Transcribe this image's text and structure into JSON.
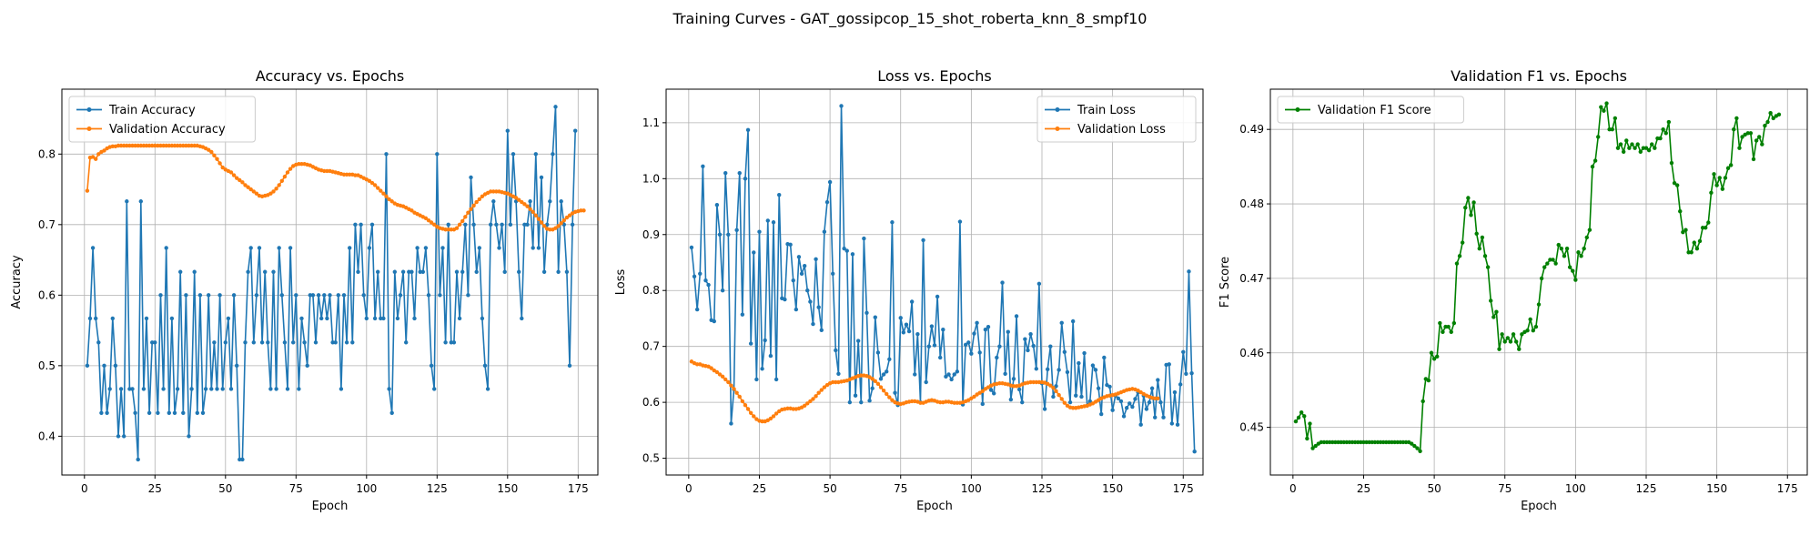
{
  "figure": {
    "suptitle": "Training Curves - GAT_gossipcop_15_shot_roberta_knn_8_smpf10"
  },
  "colors": {
    "blue": "#1f77b4",
    "orange": "#ff7f0e",
    "green": "#008000",
    "grid": "#b0b0b0"
  },
  "chart_data": [
    {
      "type": "line",
      "title": "Accuracy vs. Epochs",
      "xlabel": "Epoch",
      "ylabel": "Accuracy",
      "xlim": [
        -8,
        182
      ],
      "ylim": [
        0.345,
        0.892
      ],
      "xticks": [
        0,
        25,
        50,
        75,
        100,
        125,
        150,
        175
      ],
      "yticks": [
        0.4,
        0.5,
        0.6,
        0.7,
        0.8
      ],
      "legend": "top-left",
      "grid": true,
      "series": [
        {
          "name": "Train Accuracy",
          "color": "#1f77b4",
          "values": [
            0.5,
            0.567,
            0.667,
            0.567,
            0.533,
            0.433,
            0.5,
            0.433,
            0.467,
            0.567,
            0.5,
            0.4,
            0.467,
            0.4,
            0.733,
            0.467,
            0.467,
            0.433,
            0.367,
            0.733,
            0.467,
            0.567,
            0.433,
            0.533,
            0.533,
            0.433,
            0.6,
            0.467,
            0.667,
            0.433,
            0.567,
            0.433,
            0.467,
            0.633,
            0.433,
            0.6,
            0.4,
            0.467,
            0.633,
            0.433,
            0.6,
            0.433,
            0.467,
            0.6,
            0.467,
            0.533,
            0.467,
            0.6,
            0.467,
            0.533,
            0.567,
            0.467,
            0.6,
            0.5,
            0.367,
            0.367,
            0.533,
            0.633,
            0.667,
            0.533,
            0.6,
            0.667,
            0.533,
            0.633,
            0.533,
            0.467,
            0.633,
            0.467,
            0.667,
            0.6,
            0.533,
            0.467,
            0.667,
            0.533,
            0.6,
            0.467,
            0.567,
            0.533,
            0.5,
            0.6,
            0.6,
            0.533,
            0.6,
            0.567,
            0.6,
            0.567,
            0.6,
            0.533,
            0.533,
            0.6,
            0.467,
            0.6,
            0.533,
            0.667,
            0.533,
            0.7,
            0.633,
            0.7,
            0.6,
            0.567,
            0.667,
            0.7,
            0.567,
            0.633,
            0.567,
            0.567,
            0.8,
            0.467,
            0.433,
            0.633,
            0.567,
            0.6,
            0.633,
            0.533,
            0.633,
            0.633,
            0.567,
            0.667,
            0.633,
            0.633,
            0.667,
            0.6,
            0.5,
            0.467,
            0.8,
            0.6,
            0.667,
            0.533,
            0.7,
            0.533,
            0.533,
            0.633,
            0.567,
            0.633,
            0.7,
            0.6,
            0.767,
            0.7,
            0.633,
            0.667,
            0.567,
            0.5,
            0.467,
            0.7,
            0.733,
            0.7,
            0.667,
            0.7,
            0.633,
            0.833,
            0.7,
            0.8,
            0.733,
            0.633,
            0.567,
            0.7,
            0.7,
            0.733,
            0.667,
            0.8,
            0.667,
            0.767,
            0.633,
            0.7,
            0.733,
            0.8,
            0.867,
            0.633,
            0.733,
            0.7,
            0.633,
            0.5,
            0.7,
            0.833
          ]
        },
        {
          "name": "Validation Accuracy",
          "color": "#ff7f0e",
          "values": [
            0.748,
            0.795,
            0.796,
            0.793,
            0.8,
            0.803,
            0.805,
            0.808,
            0.81,
            0.811,
            0.811,
            0.812,
            0.812,
            0.812,
            0.812,
            0.812,
            0.812,
            0.812,
            0.812,
            0.812,
            0.812,
            0.812,
            0.812,
            0.812,
            0.812,
            0.812,
            0.812,
            0.812,
            0.812,
            0.812,
            0.812,
            0.812,
            0.812,
            0.812,
            0.812,
            0.812,
            0.812,
            0.812,
            0.812,
            0.812,
            0.811,
            0.81,
            0.808,
            0.806,
            0.803,
            0.798,
            0.793,
            0.787,
            0.781,
            0.778,
            0.776,
            0.774,
            0.77,
            0.766,
            0.763,
            0.76,
            0.756,
            0.753,
            0.75,
            0.747,
            0.744,
            0.741,
            0.74,
            0.741,
            0.742,
            0.744,
            0.747,
            0.751,
            0.756,
            0.762,
            0.768,
            0.774,
            0.779,
            0.783,
            0.785,
            0.786,
            0.786,
            0.786,
            0.785,
            0.784,
            0.782,
            0.78,
            0.778,
            0.777,
            0.776,
            0.776,
            0.776,
            0.775,
            0.774,
            0.773,
            0.772,
            0.771,
            0.771,
            0.771,
            0.771,
            0.77,
            0.77,
            0.768,
            0.766,
            0.764,
            0.762,
            0.759,
            0.756,
            0.752,
            0.748,
            0.744,
            0.74,
            0.736,
            0.733,
            0.73,
            0.728,
            0.727,
            0.726,
            0.724,
            0.722,
            0.72,
            0.717,
            0.715,
            0.713,
            0.711,
            0.709,
            0.706,
            0.703,
            0.7,
            0.697,
            0.695,
            0.694,
            0.693,
            0.693,
            0.693,
            0.693,
            0.695,
            0.7,
            0.705,
            0.711,
            0.717,
            0.722,
            0.727,
            0.732,
            0.736,
            0.74,
            0.743,
            0.745,
            0.747,
            0.747,
            0.747,
            0.747,
            0.746,
            0.745,
            0.744,
            0.742,
            0.74,
            0.738,
            0.735,
            0.732,
            0.729,
            0.726,
            0.722,
            0.718,
            0.713,
            0.708,
            0.703,
            0.698,
            0.694,
            0.693,
            0.693,
            0.695,
            0.698,
            0.702,
            0.706,
            0.71,
            0.713,
            0.716,
            0.718,
            0.719,
            0.72,
            0.72
          ]
        }
      ]
    },
    {
      "type": "line",
      "title": "Loss vs. Epochs",
      "xlabel": "Epoch",
      "ylabel": "Loss",
      "xlim": [
        -8,
        182
      ],
      "ylim": [
        0.47,
        1.16
      ],
      "xticks": [
        0,
        25,
        50,
        75,
        100,
        125,
        150,
        175
      ],
      "yticks": [
        0.5,
        0.6,
        0.7,
        0.8,
        0.9,
        1.0,
        1.1
      ],
      "legend": "top-right",
      "grid": true,
      "series": [
        {
          "name": "Train Loss",
          "color": "#1f77b4",
          "values": [
            0.877,
            0.825,
            0.766,
            0.83,
            1.022,
            0.818,
            0.81,
            0.747,
            0.745,
            0.953,
            0.9,
            0.8,
            1.01,
            0.9,
            0.562,
            0.623,
            0.908,
            1.01,
            0.757,
            1.0,
            1.087,
            0.705,
            0.868,
            0.641,
            0.905,
            0.66,
            0.711,
            0.925,
            0.683,
            0.922,
            0.641,
            0.971,
            0.786,
            0.784,
            0.883,
            0.882,
            0.818,
            0.766,
            0.86,
            0.83,
            0.844,
            0.8,
            0.78,
            0.74,
            0.856,
            0.77,
            0.729,
            0.905,
            0.958,
            0.994,
            0.83,
            0.693,
            0.651,
            1.13,
            0.875,
            0.871,
            0.6,
            0.865,
            0.612,
            0.71,
            0.6,
            0.893,
            0.76,
            0.603,
            0.625,
            0.752,
            0.689,
            0.642,
            0.65,
            0.655,
            0.677,
            0.922,
            0.617,
            0.595,
            0.751,
            0.725,
            0.739,
            0.727,
            0.78,
            0.65,
            0.722,
            0.6,
            0.89,
            0.636,
            0.7,
            0.736,
            0.702,
            0.789,
            0.68,
            0.73,
            0.646,
            0.65,
            0.641,
            0.65,
            0.655,
            0.923,
            0.596,
            0.703,
            0.707,
            0.687,
            0.723,
            0.742,
            0.689,
            0.597,
            0.73,
            0.735,
            0.622,
            0.616,
            0.68,
            0.7,
            0.814,
            0.651,
            0.726,
            0.605,
            0.642,
            0.754,
            0.623,
            0.6,
            0.713,
            0.693,
            0.722,
            0.701,
            0.66,
            0.812,
            0.634,
            0.588,
            0.659,
            0.7,
            0.61,
            0.629,
            0.658,
            0.742,
            0.69,
            0.654,
            0.6,
            0.745,
            0.612,
            0.67,
            0.61,
            0.688,
            0.594,
            0.602,
            0.666,
            0.658,
            0.625,
            0.579,
            0.68,
            0.631,
            0.628,
            0.586,
            0.612,
            0.607,
            0.602,
            0.575,
            0.59,
            0.598,
            0.592,
            0.606,
            0.618,
            0.56,
            0.612,
            0.588,
            0.6,
            0.625,
            0.573,
            0.64,
            0.6,
            0.573,
            0.667,
            0.668,
            0.562,
            0.618,
            0.56,
            0.632,
            0.69,
            0.651,
            0.834,
            0.652,
            0.512
          ]
        },
        {
          "name": "Validation Loss",
          "color": "#ff7f0e",
          "values": [
            0.673,
            0.67,
            0.668,
            0.668,
            0.666,
            0.665,
            0.664,
            0.661,
            0.657,
            0.654,
            0.65,
            0.646,
            0.641,
            0.636,
            0.63,
            0.624,
            0.617,
            0.61,
            0.602,
            0.595,
            0.588,
            0.581,
            0.575,
            0.57,
            0.567,
            0.566,
            0.566,
            0.568,
            0.571,
            0.575,
            0.58,
            0.584,
            0.587,
            0.588,
            0.589,
            0.589,
            0.588,
            0.588,
            0.589,
            0.591,
            0.594,
            0.598,
            0.602,
            0.606,
            0.611,
            0.617,
            0.622,
            0.627,
            0.631,
            0.634,
            0.636,
            0.636,
            0.636,
            0.637,
            0.638,
            0.639,
            0.641,
            0.643,
            0.645,
            0.647,
            0.648,
            0.648,
            0.647,
            0.645,
            0.642,
            0.638,
            0.633,
            0.627,
            0.621,
            0.615,
            0.609,
            0.604,
            0.6,
            0.598,
            0.597,
            0.598,
            0.6,
            0.601,
            0.602,
            0.602,
            0.601,
            0.599,
            0.599,
            0.601,
            0.603,
            0.604,
            0.603,
            0.601,
            0.6,
            0.6,
            0.601,
            0.601,
            0.6,
            0.599,
            0.599,
            0.599,
            0.6,
            0.602,
            0.604,
            0.607,
            0.61,
            0.614,
            0.617,
            0.62,
            0.624,
            0.627,
            0.63,
            0.632,
            0.633,
            0.634,
            0.634,
            0.633,
            0.632,
            0.63,
            0.629,
            0.629,
            0.63,
            0.632,
            0.634,
            0.635,
            0.636,
            0.636,
            0.636,
            0.636,
            0.636,
            0.635,
            0.633,
            0.63,
            0.626,
            0.62,
            0.613,
            0.606,
            0.599,
            0.594,
            0.591,
            0.59,
            0.59,
            0.591,
            0.592,
            0.593,
            0.594,
            0.596,
            0.598,
            0.601,
            0.604,
            0.607,
            0.609,
            0.611,
            0.612,
            0.613,
            0.614,
            0.616,
            0.618,
            0.62,
            0.622,
            0.623,
            0.624,
            0.623,
            0.621,
            0.618,
            0.615,
            0.612,
            0.61,
            0.608,
            0.607,
            0.607
          ]
        }
      ]
    },
    {
      "type": "line",
      "title": "Validation F1 vs. Epochs",
      "xlabel": "Epoch",
      "ylabel": "F1 Score",
      "xlim": [
        -8,
        182
      ],
      "ylim": [
        0.4436,
        0.4954
      ],
      "xticks": [
        0,
        25,
        50,
        75,
        100,
        125,
        150,
        175
      ],
      "yticks": [
        0.45,
        0.46,
        0.47,
        0.48,
        0.49
      ],
      "legend": "top-left",
      "grid": true,
      "series": [
        {
          "name": "Validation F1 Score",
          "color": "#008000",
          "values": [
            0.4508,
            0.4513,
            0.452,
            0.4515,
            0.4485,
            0.4505,
            0.4472,
            0.4475,
            0.4478,
            0.448,
            0.448,
            0.448,
            0.448,
            0.448,
            0.448,
            0.448,
            0.448,
            0.448,
            0.448,
            0.448,
            0.448,
            0.448,
            0.448,
            0.448,
            0.448,
            0.448,
            0.448,
            0.448,
            0.448,
            0.448,
            0.448,
            0.448,
            0.448,
            0.448,
            0.448,
            0.448,
            0.448,
            0.448,
            0.448,
            0.448,
            0.448,
            0.4478,
            0.4475,
            0.4472,
            0.4468,
            0.4535,
            0.4565,
            0.4563,
            0.46,
            0.4592,
            0.4595,
            0.464,
            0.4628,
            0.4635,
            0.4635,
            0.4628,
            0.464,
            0.472,
            0.473,
            0.4748,
            0.4795,
            0.4808,
            0.4785,
            0.4802,
            0.476,
            0.474,
            0.4755,
            0.473,
            0.4715,
            0.467,
            0.4648,
            0.4655,
            0.4605,
            0.4625,
            0.4615,
            0.462,
            0.4615,
            0.4625,
            0.4615,
            0.4605,
            0.4625,
            0.4628,
            0.463,
            0.4645,
            0.463,
            0.4635,
            0.4665,
            0.47,
            0.4715,
            0.472,
            0.4725,
            0.4725,
            0.472,
            0.4745,
            0.474,
            0.473,
            0.474,
            0.4715,
            0.471,
            0.4698,
            0.4735,
            0.473,
            0.474,
            0.4755,
            0.4765,
            0.485,
            0.4858,
            0.489,
            0.493,
            0.4925,
            0.4935,
            0.49,
            0.49,
            0.4915,
            0.4875,
            0.488,
            0.487,
            0.4885,
            0.4875,
            0.488,
            0.4875,
            0.488,
            0.487,
            0.4875,
            0.4875,
            0.4872,
            0.488,
            0.4875,
            0.4888,
            0.4888,
            0.49,
            0.4895,
            0.491,
            0.4855,
            0.4828,
            0.4825,
            0.479,
            0.4762,
            0.4765,
            0.4735,
            0.4735,
            0.4748,
            0.474,
            0.475,
            0.4768,
            0.4768,
            0.4775,
            0.4815,
            0.484,
            0.4825,
            0.4835,
            0.482,
            0.4835,
            0.4848,
            0.4852,
            0.49,
            0.4915,
            0.4875,
            0.489,
            0.4893,
            0.4895,
            0.4895,
            0.486,
            0.4885,
            0.489,
            0.488,
            0.4905,
            0.491,
            0.4922,
            0.4915,
            0.4918,
            0.492
          ]
        }
      ]
    }
  ]
}
